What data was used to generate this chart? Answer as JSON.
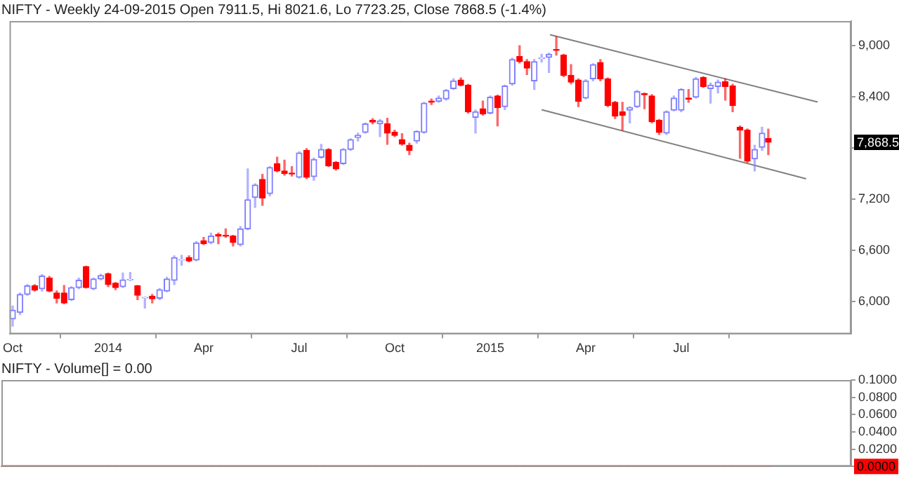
{
  "chart_data": [
    {
      "type": "candlestick",
      "title": "NIFTY - Weekly 24-09-2015 Open 7911.5, Hi 8021.6, Lo 7723.25, Close 7868.5 (-1.4%)",
      "x": [
        "2013-10-04",
        "2013-10-11",
        "2013-10-18",
        "2013-10-25",
        "2013-11-01",
        "2013-11-08",
        "2013-11-15",
        "2013-11-22",
        "2013-11-29",
        "2013-12-06",
        "2013-12-13",
        "2013-12-20",
        "2013-12-27",
        "2014-01-03",
        "2014-01-10",
        "2014-01-17",
        "2014-01-24",
        "2014-01-31",
        "2014-02-07",
        "2014-02-14",
        "2014-02-21",
        "2014-02-28",
        "2014-03-07",
        "2014-03-14",
        "2014-03-21",
        "2014-03-28",
        "2014-04-04",
        "2014-04-11",
        "2014-04-18",
        "2014-04-25",
        "2014-05-02",
        "2014-05-09",
        "2014-05-16",
        "2014-05-23",
        "2014-05-30",
        "2014-06-06",
        "2014-06-13",
        "2014-06-20",
        "2014-06-27",
        "2014-07-04",
        "2014-07-11",
        "2014-07-18",
        "2014-07-25",
        "2014-08-01",
        "2014-08-08",
        "2014-08-15",
        "2014-08-22",
        "2014-08-29",
        "2014-09-05",
        "2014-09-12",
        "2014-09-19",
        "2014-09-26",
        "2014-10-03",
        "2014-10-10",
        "2014-10-17",
        "2014-10-24",
        "2014-10-31",
        "2014-11-07",
        "2014-11-14",
        "2014-11-21",
        "2014-11-28",
        "2014-12-05",
        "2014-12-12",
        "2014-12-19",
        "2014-12-26",
        "2015-01-02",
        "2015-01-09",
        "2015-01-16",
        "2015-01-23",
        "2015-01-30",
        "2015-02-06",
        "2015-02-13",
        "2015-02-20",
        "2015-02-27",
        "2015-03-06",
        "2015-03-13",
        "2015-03-20",
        "2015-03-27",
        "2015-04-03",
        "2015-04-10",
        "2015-04-17",
        "2015-04-24",
        "2015-05-01",
        "2015-05-08",
        "2015-05-15",
        "2015-05-22",
        "2015-05-29",
        "2015-06-05",
        "2015-06-12",
        "2015-06-19",
        "2015-06-26",
        "2015-07-03",
        "2015-07-10",
        "2015-07-17",
        "2015-07-24",
        "2015-07-31",
        "2015-08-07",
        "2015-08-14",
        "2015-08-21",
        "2015-08-28",
        "2015-09-04",
        "2015-09-11",
        "2015-09-18",
        "2015-09-24"
      ],
      "ohlc": [
        [
          5798,
          5949,
          5712,
          5899
        ],
        [
          5873,
          6100,
          5848,
          6085
        ],
        [
          6085,
          6200,
          6074,
          6185
        ],
        [
          6185,
          6200,
          6125,
          6135
        ],
        [
          6150,
          6316,
          6125,
          6301
        ],
        [
          6276,
          6296,
          6115,
          6125
        ],
        [
          6100,
          6125,
          5984,
          6039
        ],
        [
          6100,
          6190,
          5974,
          5984
        ],
        [
          6024,
          6175,
          6014,
          6165
        ],
        [
          6165,
          6276,
          6150,
          6250
        ],
        [
          6411,
          6416,
          6160,
          6165
        ],
        [
          6150,
          6276,
          6140,
          6265
        ],
        [
          6265,
          6321,
          6255,
          6306
        ],
        [
          6326,
          6336,
          6175,
          6200
        ],
        [
          6215,
          6225,
          6140,
          6165
        ],
        [
          6175,
          6336,
          6165,
          6255
        ],
        [
          6255,
          6341,
          6245,
          6260
        ],
        [
          6185,
          6190,
          6024,
          6074
        ],
        [
          6044,
          6054,
          5924,
          6049
        ],
        [
          6064,
          6085,
          5984,
          6034
        ],
        [
          6039,
          6155,
          6024,
          6140
        ],
        [
          6125,
          6286,
          6115,
          6265
        ],
        [
          6250,
          6537,
          6200,
          6517
        ],
        [
          6487,
          6542,
          6426,
          6492
        ],
        [
          6517,
          6537,
          6467,
          6477
        ],
        [
          6487,
          6703,
          6477,
          6688
        ],
        [
          6713,
          6753,
          6668,
          6678
        ],
        [
          6693,
          6803,
          6678,
          6768
        ],
        [
          6788,
          6803,
          6678,
          6768
        ],
        [
          6778,
          6854,
          6753,
          6768
        ],
        [
          6768,
          6778,
          6653,
          6693
        ],
        [
          6668,
          6879,
          6653,
          6854
        ],
        [
          6854,
          7557,
          6844,
          7195
        ],
        [
          7221,
          7381,
          7105,
          7366
        ],
        [
          7432,
          7492,
          7130,
          7216
        ],
        [
          7266,
          7583,
          7241,
          7572
        ],
        [
          7618,
          7693,
          7522,
          7532
        ],
        [
          7532,
          7658,
          7482,
          7502
        ],
        [
          7507,
          7583,
          7472,
          7497
        ],
        [
          7457,
          7758,
          7447,
          7743
        ],
        [
          7774,
          7794,
          7442,
          7457
        ],
        [
          7467,
          7683,
          7422,
          7668
        ],
        [
          7693,
          7844,
          7683,
          7784
        ],
        [
          7784,
          7794,
          7583,
          7593
        ],
        [
          7633,
          7643,
          7542,
          7557
        ],
        [
          7618,
          7794,
          7608,
          7784
        ],
        [
          7784,
          7909,
          7774,
          7899
        ],
        [
          7924,
          7975,
          7884,
          7950
        ],
        [
          7985,
          8095,
          7975,
          8085
        ],
        [
          8125,
          8146,
          8085,
          8105
        ],
        [
          8085,
          8136,
          7934,
          8120
        ],
        [
          8085,
          8151,
          7844,
          7975
        ],
        [
          7985,
          8010,
          7934,
          7950
        ],
        [
          7899,
          7970,
          7834,
          7849
        ],
        [
          7834,
          7859,
          7723,
          7774
        ],
        [
          7884,
          8005,
          7859,
          7995
        ],
        [
          7985,
          8337,
          7975,
          8327
        ],
        [
          8352,
          8377,
          8311,
          8337
        ],
        [
          8347,
          8412,
          8337,
          8387
        ],
        [
          8377,
          8487,
          8362,
          8477
        ],
        [
          8497,
          8613,
          8487,
          8588
        ],
        [
          8598,
          8623,
          8528,
          8538
        ],
        [
          8538,
          8548,
          8211,
          8226
        ],
        [
          8161,
          8246,
          7975,
          8226
        ],
        [
          8261,
          8352,
          8186,
          8201
        ],
        [
          8211,
          8412,
          8201,
          8397
        ],
        [
          8412,
          8422,
          8060,
          8276
        ],
        [
          8286,
          8538,
          8251,
          8528
        ],
        [
          8553,
          8854,
          8538,
          8839
        ],
        [
          8874,
          9000,
          8799,
          8814
        ],
        [
          8814,
          8839,
          8663,
          8739
        ],
        [
          8588,
          8839,
          8487,
          8814
        ],
        [
          8849,
          8900,
          8809,
          8859
        ],
        [
          8864,
          8915,
          8688,
          8900
        ],
        [
          8955,
          9106,
          8890,
          8945
        ],
        [
          8890,
          8900,
          8638,
          8653
        ],
        [
          8653,
          8779,
          8553,
          8573
        ],
        [
          8598,
          8613,
          8286,
          8347
        ],
        [
          8387,
          8603,
          8377,
          8588
        ],
        [
          8613,
          8789,
          8588,
          8779
        ],
        [
          8804,
          8839,
          8588,
          8613
        ],
        [
          8613,
          8623,
          8286,
          8301
        ],
        [
          8337,
          8347,
          8146,
          8176
        ],
        [
          8226,
          8337,
          8010,
          8186
        ],
        [
          8246,
          8286,
          8095,
          8276
        ],
        [
          8286,
          8477,
          8276,
          8462
        ],
        [
          8437,
          8447,
          8261,
          8427
        ],
        [
          8412,
          8427,
          8095,
          8110
        ],
        [
          8125,
          8136,
          7960,
          7985
        ],
        [
          7975,
          8236,
          7960,
          8226
        ],
        [
          8246,
          8412,
          8236,
          8387
        ],
        [
          8246,
          8497,
          8226,
          8487
        ],
        [
          8387,
          8487,
          8337,
          8372
        ],
        [
          8397,
          8628,
          8387,
          8613
        ],
        [
          8628,
          8638,
          8513,
          8523
        ],
        [
          8497,
          8563,
          8327,
          8538
        ],
        [
          8523,
          8598,
          8447,
          8573
        ],
        [
          8578,
          8613,
          8362,
          8523
        ],
        [
          8528,
          8548,
          8226,
          8301
        ],
        [
          8045,
          8060,
          7683,
          8010
        ],
        [
          8010,
          8025,
          7633,
          7648
        ],
        [
          7673,
          7834,
          7532,
          7784
        ],
        [
          7809,
          8045,
          7774,
          7975
        ],
        [
          7911.5,
          8021.6,
          7723.25,
          7868.5
        ]
      ],
      "colors": [
        "#8080ff",
        "#8080ff",
        "#8080ff",
        "#ff0000",
        "#8080ff",
        "#ff0000",
        "#ff0000",
        "#ff0000",
        "#8080ff",
        "#8080ff",
        "#ff0000",
        "#8080ff",
        "#8080ff",
        "#ff0000",
        "#ff0000",
        "#8080ff",
        "#8080ff",
        "#ff0000",
        "#8080ff",
        "#ff0000",
        "#8080ff",
        "#8080ff",
        "#8080ff",
        "#8080ff",
        "#ff0000",
        "#8080ff",
        "#ff0000",
        "#8080ff",
        "#ff0000",
        "#ff0000",
        "#ff0000",
        "#8080ff",
        "#8080ff",
        "#8080ff",
        "#ff0000",
        "#8080ff",
        "#ff0000",
        "#ff0000",
        "#ff0000",
        "#8080ff",
        "#ff0000",
        "#8080ff",
        "#8080ff",
        "#ff0000",
        "#ff0000",
        "#8080ff",
        "#8080ff",
        "#8080ff",
        "#8080ff",
        "#ff0000",
        "#8080ff",
        "#ff0000",
        "#ff0000",
        "#ff0000",
        "#ff0000",
        "#8080ff",
        "#8080ff",
        "#ff0000",
        "#8080ff",
        "#8080ff",
        "#8080ff",
        "#ff0000",
        "#ff0000",
        "#8080ff",
        "#ff0000",
        "#8080ff",
        "#ff0000",
        "#8080ff",
        "#8080ff",
        "#ff0000",
        "#ff0000",
        "#8080ff",
        "#8080ff",
        "#8080ff",
        "#ff0000",
        "#ff0000",
        "#ff0000",
        "#ff0000",
        "#8080ff",
        "#8080ff",
        "#ff0000",
        "#ff0000",
        "#ff0000",
        "#ff0000",
        "#8080ff",
        "#8080ff",
        "#ff0000",
        "#ff0000",
        "#ff0000",
        "#8080ff",
        "#8080ff",
        "#8080ff",
        "#ff0000",
        "#8080ff",
        "#ff0000",
        "#8080ff",
        "#8080ff",
        "#ff0000",
        "#ff0000",
        "#ff0000",
        "#ff0000",
        "#8080ff",
        "#8080ff",
        "#ff0000"
      ],
      "series": [
        {
          "type": "line",
          "color": "#808080",
          "x": [
            "2015-02-28",
            "2015-11-10"
          ],
          "values": [
            9130,
            8340
          ]
        },
        {
          "type": "line",
          "color": "#808080",
          "x": [
            "2015-02-20",
            "2015-10-30"
          ],
          "values": [
            8250,
            7440
          ]
        }
      ],
      "xlim": [
        "2013-10-01",
        "2015-12-12"
      ],
      "xticks": [
        {
          "value": "2013-10-04",
          "label": "Oct"
        },
        {
          "value": "2014-01-03",
          "label": "2014"
        },
        {
          "value": "2014-04-04",
          "label": "Apr"
        },
        {
          "value": "2014-07-04",
          "label": "Jul"
        },
        {
          "value": "2014-10-03",
          "label": "Oct"
        },
        {
          "value": "2015-01-02",
          "label": "2015"
        },
        {
          "value": "2015-04-03",
          "label": "Apr"
        },
        {
          "value": "2015-07-03",
          "label": "Jul"
        }
      ],
      "ylim": [
        5620,
        9290
      ],
      "yticks": [
        {
          "value": 6000,
          "label": "6,000"
        },
        {
          "value": 6600,
          "label": "6,600"
        },
        {
          "value": 7200,
          "label": "7,200"
        },
        {
          "value": 7800,
          "label": null
        },
        {
          "value": 8400,
          "label": "8,400"
        },
        {
          "value": 9000,
          "label": "9,000"
        }
      ],
      "annotations": [
        {
          "text": "7,868.5",
          "y": 7868.5
        }
      ],
      "legend": false
    },
    {
      "type": "bar",
      "title": "NIFTY - Volume[] = 0.00",
      "x": [
        "2013-10-04",
        "2013-10-11",
        "2013-10-18",
        "2013-10-25",
        "2013-11-01",
        "2013-11-08",
        "2013-11-15",
        "2013-11-22",
        "2013-11-29",
        "2013-12-06",
        "2013-12-13",
        "2013-12-20",
        "2013-12-27",
        "2014-01-03",
        "2014-01-10",
        "2014-01-17",
        "2014-01-24",
        "2014-01-31",
        "2014-02-07",
        "2014-02-14",
        "2014-02-21",
        "2014-02-28",
        "2014-03-07",
        "2014-03-14",
        "2014-03-21",
        "2014-03-28",
        "2014-04-04",
        "2014-04-11",
        "2014-04-18",
        "2014-04-25",
        "2014-05-02",
        "2014-05-09",
        "2014-05-16",
        "2014-05-23",
        "2014-05-30",
        "2014-06-06",
        "2014-06-13",
        "2014-06-20",
        "2014-06-27",
        "2014-07-04",
        "2014-07-11",
        "2014-07-18",
        "2014-07-25",
        "2014-08-01",
        "2014-08-08",
        "2014-08-15",
        "2014-08-22",
        "2014-08-29",
        "2014-09-05",
        "2014-09-12",
        "2014-09-19",
        "2014-09-26",
        "2014-10-03",
        "2014-10-10",
        "2014-10-17",
        "2014-10-24",
        "2014-10-31",
        "2014-11-07",
        "2014-11-14",
        "2014-11-21",
        "2014-11-28",
        "2014-12-05",
        "2014-12-12",
        "2014-12-19",
        "2014-12-26",
        "2015-01-02",
        "2015-01-09",
        "2015-01-16",
        "2015-01-23",
        "2015-01-30",
        "2015-02-06",
        "2015-02-13",
        "2015-02-20",
        "2015-02-27",
        "2015-03-06",
        "2015-03-13",
        "2015-03-20",
        "2015-03-27",
        "2015-04-03",
        "2015-04-10",
        "2015-04-17",
        "2015-04-24",
        "2015-05-01",
        "2015-05-08",
        "2015-05-15",
        "2015-05-22",
        "2015-05-29",
        "2015-06-05",
        "2015-06-12",
        "2015-06-19",
        "2015-06-26",
        "2015-07-03",
        "2015-07-10",
        "2015-07-17",
        "2015-07-24",
        "2015-07-31",
        "2015-08-07",
        "2015-08-14",
        "2015-08-21",
        "2015-08-28",
        "2015-09-04",
        "2015-09-11",
        "2015-09-18",
        "2015-09-24"
      ],
      "values": [
        0,
        0,
        0,
        0,
        0,
        0,
        0,
        0,
        0,
        0,
        0,
        0,
        0,
        0,
        0,
        0,
        0,
        0,
        0,
        0,
        0,
        0,
        0,
        0,
        0,
        0,
        0,
        0,
        0,
        0,
        0,
        0,
        0,
        0,
        0,
        0,
        0,
        0,
        0,
        0,
        0,
        0,
        0,
        0,
        0,
        0,
        0,
        0,
        0,
        0,
        0,
        0,
        0,
        0,
        0,
        0,
        0,
        0,
        0,
        0,
        0,
        0,
        0,
        0,
        0,
        0,
        0,
        0,
        0,
        0,
        0,
        0,
        0,
        0,
        0,
        0,
        0,
        0,
        0,
        0,
        0,
        0,
        0,
        0,
        0,
        0,
        0,
        0,
        0,
        0,
        0,
        0,
        0,
        0,
        0,
        0,
        0,
        0,
        0,
        0,
        0,
        0,
        0,
        0
      ],
      "xlim": [
        "2013-10-01",
        "2015-12-12"
      ],
      "ylim": [
        0,
        0.1
      ],
      "yticks": [
        {
          "value": 0,
          "label": null
        },
        {
          "value": 0.02,
          "label": "0.0200"
        },
        {
          "value": 0.04,
          "label": "0.0400"
        },
        {
          "value": 0.06,
          "label": "0.0600"
        },
        {
          "value": 0.08,
          "label": "0.0800"
        },
        {
          "value": 0.1,
          "label": "0.1000"
        }
      ],
      "annotations": [
        {
          "text": "0.0000",
          "y": 0
        }
      ],
      "tick_labels": "y",
      "legend": false
    }
  ]
}
